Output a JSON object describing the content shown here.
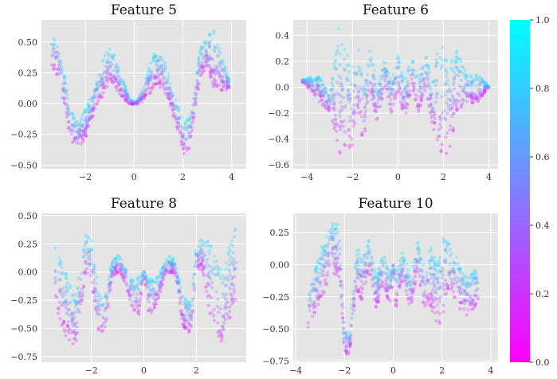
{
  "chart_data": [
    {
      "type": "scatter",
      "title": "Feature 5",
      "xlim": [
        -3.8,
        4.6
      ],
      "ylim": [
        -0.53,
        0.68
      ],
      "xticks": [
        -2,
        0,
        2,
        4
      ],
      "yticks": [
        -0.5,
        -0.25,
        0.0,
        0.25,
        0.5
      ],
      "ytick_format": 2,
      "grid": true,
      "x": [
        -3.4,
        -3.1,
        -2.6,
        -2.3,
        -2.0,
        -1.6,
        -1.2,
        -1.0,
        -0.8,
        -0.5,
        -0.2,
        0.0,
        0.2,
        0.5,
        0.8,
        1.0,
        1.2,
        1.6,
        1.9,
        2.1,
        2.3,
        2.7,
        3.0,
        3.3,
        3.9
      ],
      "y_upper": [
        0.55,
        0.5,
        -0.05,
        -0.15,
        -0.05,
        0.15,
        0.4,
        0.45,
        0.4,
        0.22,
        0.05,
        0.0,
        0.05,
        0.22,
        0.4,
        0.42,
        0.4,
        0.1,
        -0.08,
        -0.15,
        -0.1,
        0.45,
        0.55,
        0.6,
        0.2
      ],
      "y_lower": [
        0.3,
        0.2,
        -0.3,
        -0.35,
        -0.3,
        -0.05,
        0.1,
        0.18,
        0.12,
        0.05,
        0.0,
        0.0,
        0.0,
        0.05,
        0.12,
        0.15,
        0.1,
        -0.1,
        -0.3,
        -0.45,
        -0.35,
        0.2,
        0.3,
        0.1,
        0.1
      ]
    },
    {
      "type": "scatter",
      "title": "Feature 6",
      "xlim": [
        -4.6,
        4.4
      ],
      "ylim": [
        -0.63,
        0.52
      ],
      "xticks": [
        -4,
        -2,
        0,
        2,
        4
      ],
      "yticks": [
        -0.6,
        -0.4,
        -0.2,
        0.0,
        0.2,
        0.4
      ],
      "ytick_format": 1,
      "grid": true,
      "x": [
        -4.2,
        -3.5,
        -3.0,
        -2.6,
        -2.3,
        -2.0,
        -1.8,
        -1.5,
        -1.2,
        -0.9,
        -0.6,
        -0.3,
        0.0,
        0.3,
        0.6,
        0.9,
        1.2,
        1.5,
        1.8,
        2.0,
        2.3,
        2.6,
        3.0,
        3.6,
        4.0
      ],
      "y_upper": [
        0.05,
        0.1,
        -0.05,
        0.45,
        0.3,
        0.15,
        0.35,
        0.1,
        0.3,
        0.0,
        0.25,
        0.05,
        0.25,
        0.05,
        0.25,
        0.05,
        0.3,
        0.05,
        0.35,
        0.3,
        0.2,
        0.3,
        0.1,
        0.1,
        0.0
      ],
      "y_lower": [
        0.05,
        -0.1,
        -0.2,
        -0.5,
        -0.55,
        -0.45,
        -0.2,
        -0.45,
        -0.05,
        -0.3,
        0.0,
        -0.2,
        -0.05,
        -0.25,
        0.0,
        -0.2,
        -0.05,
        -0.3,
        -0.45,
        -0.55,
        -0.45,
        -0.2,
        -0.15,
        -0.1,
        0.0
      ]
    },
    {
      "type": "scatter",
      "title": "Feature 8",
      "xlim": [
        -3.9,
        3.9
      ],
      "ylim": [
        -0.8,
        0.52
      ],
      "xticks": [
        -2,
        0,
        2
      ],
      "yticks": [
        -0.75,
        -0.5,
        -0.25,
        0.0,
        0.25,
        0.5
      ],
      "ytick_format": 2,
      "grid": true,
      "x": [
        -3.4,
        -3.0,
        -2.6,
        -2.2,
        -2.0,
        -1.7,
        -1.5,
        -1.2,
        -1.0,
        -0.8,
        -0.5,
        -0.2,
        0.0,
        0.2,
        0.5,
        0.8,
        1.0,
        1.2,
        1.5,
        1.8,
        2.0,
        2.2,
        2.6,
        3.0,
        3.5
      ],
      "y_upper": [
        0.25,
        0.0,
        -0.2,
        0.35,
        0.3,
        -0.2,
        -0.2,
        0.1,
        0.15,
        0.1,
        -0.05,
        -0.05,
        0.0,
        -0.05,
        -0.05,
        0.1,
        0.15,
        0.1,
        -0.2,
        -0.25,
        0.25,
        0.3,
        0.25,
        0.0,
        0.45
      ],
      "y_lower": [
        -0.3,
        -0.55,
        -0.7,
        0.0,
        -0.1,
        -0.6,
        -0.55,
        -0.05,
        0.0,
        -0.05,
        -0.3,
        -0.4,
        0.0,
        -0.4,
        -0.3,
        -0.05,
        0.0,
        -0.05,
        -0.5,
        -0.55,
        0.0,
        0.05,
        -0.5,
        -0.65,
        -0.25
      ]
    },
    {
      "type": "scatter",
      "title": "Feature 10",
      "xlim": [
        -4.1,
        4.3
      ],
      "ylim": [
        -0.76,
        0.4
      ],
      "xticks": [
        -4,
        -2,
        0,
        2,
        4
      ],
      "yticks": [
        -0.75,
        -0.5,
        -0.25,
        0.0,
        0.25
      ],
      "ytick_format": 2,
      "grid": true,
      "x": [
        -3.5,
        -3.0,
        -2.5,
        -2.2,
        -2.0,
        -1.8,
        -1.5,
        -1.3,
        -1.0,
        -0.7,
        -0.4,
        -0.1,
        0.0,
        0.1,
        0.4,
        0.7,
        1.0,
        1.3,
        1.5,
        1.8,
        2.0,
        2.2,
        2.5,
        3.0,
        3.5
      ],
      "y_upper": [
        -0.2,
        0.1,
        0.35,
        0.3,
        -0.5,
        -0.55,
        0.15,
        0.05,
        0.2,
        -0.1,
        0.1,
        -0.05,
        0.0,
        -0.05,
        0.1,
        -0.1,
        0.2,
        -0.05,
        0.15,
        0.0,
        0.25,
        0.2,
        0.1,
        -0.1,
        0.0
      ],
      "y_lower": [
        -0.5,
        -0.3,
        -0.05,
        -0.1,
        -0.7,
        -0.7,
        -0.2,
        -0.3,
        -0.05,
        -0.35,
        -0.15,
        -0.35,
        0.0,
        -0.35,
        -0.15,
        -0.35,
        -0.05,
        -0.35,
        -0.3,
        -0.5,
        -0.45,
        -0.2,
        -0.3,
        -0.4,
        -0.3
      ]
    }
  ],
  "colorbar": {
    "colormap": "cool",
    "colors": [
      "#ff00ff",
      "#00ffff"
    ],
    "range": [
      0.0,
      1.0
    ],
    "ticks": [
      0.0,
      0.2,
      0.4,
      0.6,
      0.8,
      1.0
    ]
  }
}
